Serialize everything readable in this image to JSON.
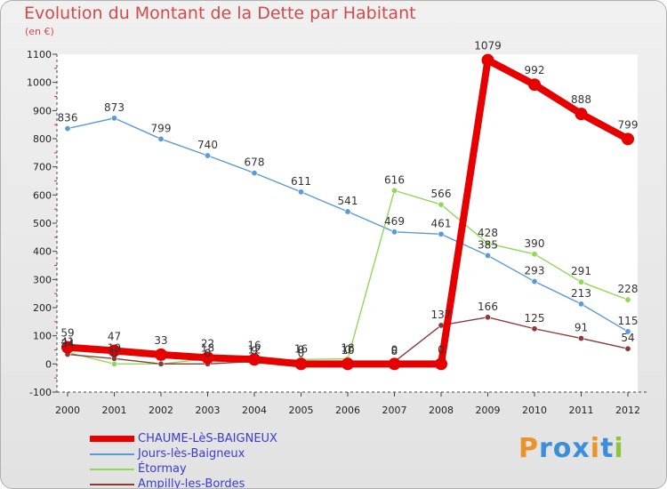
{
  "header": {
    "title": "Evolution du Montant de la Dette par Habitant",
    "subtitle": "(en €)"
  },
  "logo": {
    "text": "Proxiti",
    "letter_colors": [
      "#e8932b",
      "#3a8fd8",
      "#3a8fd8",
      "#3a8fd8",
      "#e8932b",
      "#3a8fd8",
      "#8cc63f"
    ]
  },
  "chart_data": {
    "type": "line",
    "x": [
      "2000",
      "2001",
      "2002",
      "2003",
      "2004",
      "2005",
      "2006",
      "2007",
      "2008",
      "2009",
      "2010",
      "2011",
      "2012"
    ],
    "ylim": [
      -100,
      1100
    ],
    "yticks": [
      -100,
      0,
      100,
      200,
      300,
      400,
      500,
      600,
      700,
      800,
      900,
      1000,
      1100
    ],
    "grid": false,
    "legend_position": "bottom-left",
    "series": [
      {
        "name": "CHAUME-LèS-BAIGNEUX",
        "color": "#e60000",
        "emphasis": true,
        "values": [
          59,
          47,
          33,
          22,
          16,
          0,
          0,
          0,
          0,
          1079,
          992,
          888,
          799
        ],
        "labels": [
          "59",
          "47",
          "33",
          "22",
          "16",
          "0",
          "0",
          "0",
          "0",
          "1079",
          "992",
          "888",
          "799"
        ]
      },
      {
        "name": "Jours-lès-Baigneux",
        "color": "#5b9bd5",
        "values": [
          836,
          873,
          799,
          740,
          678,
          611,
          541,
          469,
          461,
          385,
          293,
          213,
          115
        ],
        "labels": [
          "836",
          "873",
          "799",
          "740",
          "678",
          "611",
          "541",
          "469",
          "461",
          "385",
          "293",
          "213",
          "115"
        ]
      },
      {
        "name": "Étormay",
        "color": "#8fd85a",
        "values": [
          41,
          0,
          0,
          18,
          12,
          16,
          18,
          616,
          566,
          428,
          390,
          291,
          228
        ],
        "labels": [
          "41",
          "0",
          "",
          "18",
          "12",
          "16",
          "18",
          "616",
          "566",
          "428",
          "390",
          "291",
          "228"
        ]
      },
      {
        "name": "Ampilly-les-Bordes",
        "color": "#8b3a3a",
        "values": [
          34,
          19,
          0,
          0,
          9,
          0,
          10,
          8,
          137,
          166,
          125,
          91,
          54
        ],
        "labels": [
          "34",
          "19",
          "",
          "0",
          "9",
          "0",
          "10",
          "8",
          "137",
          "166",
          "125",
          "91",
          "54"
        ]
      }
    ]
  }
}
